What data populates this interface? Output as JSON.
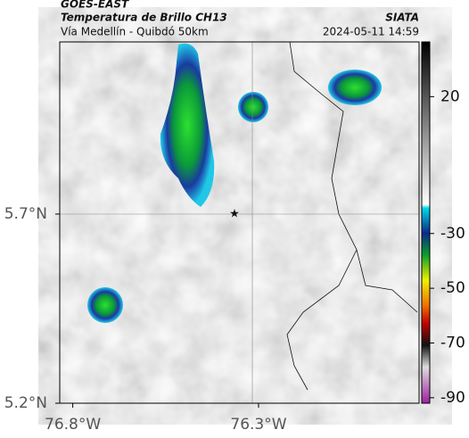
{
  "header": {
    "satellite": "GOES-EAST",
    "product": "Temperatura de Brillo CH13",
    "route": "Vía Medellín - Quibdó 50km",
    "source": "SIATA",
    "timestamp": "2024-05-11 14:59"
  },
  "map": {
    "xlim": [
      -76.835,
      -75.868
    ],
    "ylim": [
      5.2,
      6.155
    ],
    "xticks": [
      {
        "value": -76.8,
        "label": "76.8°W"
      },
      {
        "value": -76.3,
        "label": "76.3°W"
      }
    ],
    "yticks": [
      {
        "value": 5.7,
        "label": "5.7°N"
      },
      {
        "value": 5.2,
        "label": "5.2°N"
      }
    ]
  },
  "colorbar": {
    "lim": [
      40,
      -92
    ],
    "ticks": [
      20,
      -30,
      -50,
      -70,
      -90
    ]
  }
}
